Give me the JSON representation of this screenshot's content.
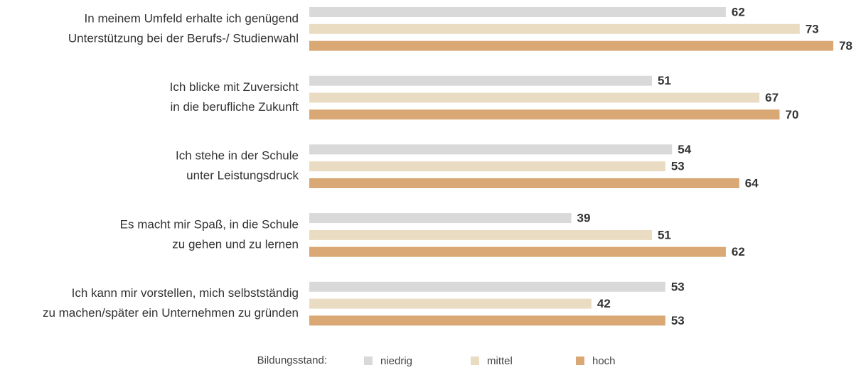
{
  "chart_data": {
    "type": "bar",
    "orientation": "horizontal",
    "categories": [
      [
        "In meinem Umfeld erhalte ich genügend",
        "Unterstützung bei der Berufs-/ Studienwahl"
      ],
      [
        "Ich blicke mit Zuversicht",
        "in die berufliche Zukunft"
      ],
      [
        "Ich stehe in der Schule",
        "unter Leistungsdruck"
      ],
      [
        "Es macht mir Spaß, in die Schule",
        "zu gehen und zu lernen"
      ],
      [
        "Ich kann mir vorstellen, mich selbstständig",
        "zu machen/später ein Unternehmen zu gründen"
      ]
    ],
    "series": [
      {
        "name": "niedrig",
        "color": "#d9d9d9",
        "values": [
          62,
          51,
          54,
          39,
          53
        ]
      },
      {
        "name": "mittel",
        "color": "#eadcc3",
        "values": [
          73,
          67,
          53,
          51,
          42
        ]
      },
      {
        "name": "hoch",
        "color": "#d9a875",
        "values": [
          78,
          70,
          64,
          62,
          53
        ]
      }
    ],
    "legend_title": "Bildungsstand:",
    "legend": "bottom"
  }
}
